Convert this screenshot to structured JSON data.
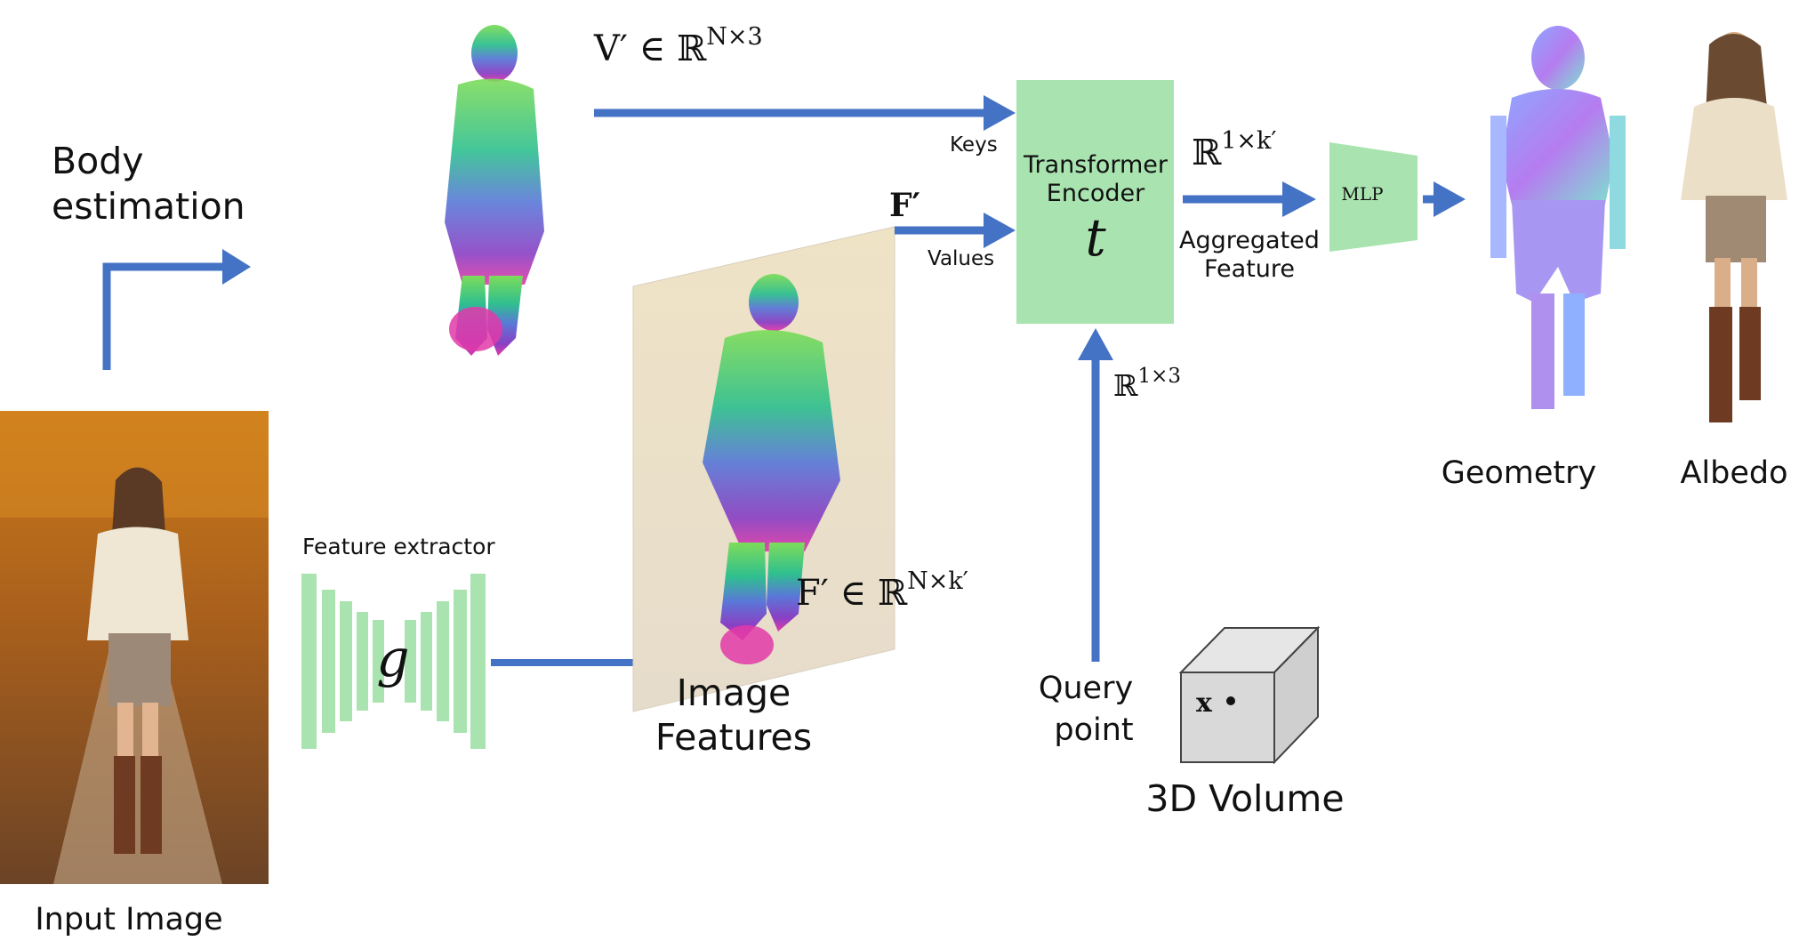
{
  "colors": {
    "arrow": "#4472c4",
    "green_box": "#a9e4b0",
    "cube_face": "#d9d9d9",
    "cube_edge": "#444444"
  },
  "labels": {
    "body_estimation_line1": "Body",
    "body_estimation_line2": "estimation",
    "input_image": "Input Image",
    "feature_extractor": "Feature extractor",
    "g_symbol": "g",
    "image_features_line1": "Image",
    "image_features_line2": "Features",
    "vertices_math": "V′ ∈ ℝ^{N×3}",
    "vertices_main": "V′ ∈ ℝ",
    "vertices_sup": "N×3",
    "features_math": "F′ ∈ ℝ^{N×k′}",
    "features_main": "F′ ∈ ℝ",
    "features_sup": "N×k′",
    "f_prime": "F′",
    "keys": "Keys",
    "values": "Values",
    "transformer_line1": "Transformer",
    "transformer_line2": "Encoder",
    "t_symbol": "t",
    "aggregated_math": "ℝ^{1×k′}",
    "aggregated_main": "ℝ",
    "aggregated_sup": "1×k′",
    "aggregated_line1": "Aggregated",
    "aggregated_line2": "Feature",
    "mlp": "MLP",
    "query_math": "ℝ^{1×3}",
    "query_main": "ℝ",
    "query_sup": "1×3",
    "query_line1": "Query",
    "query_line2": "point",
    "volume": "3D Volume",
    "x_point": "x",
    "geometry": "Geometry",
    "albedo": "Albedo"
  }
}
